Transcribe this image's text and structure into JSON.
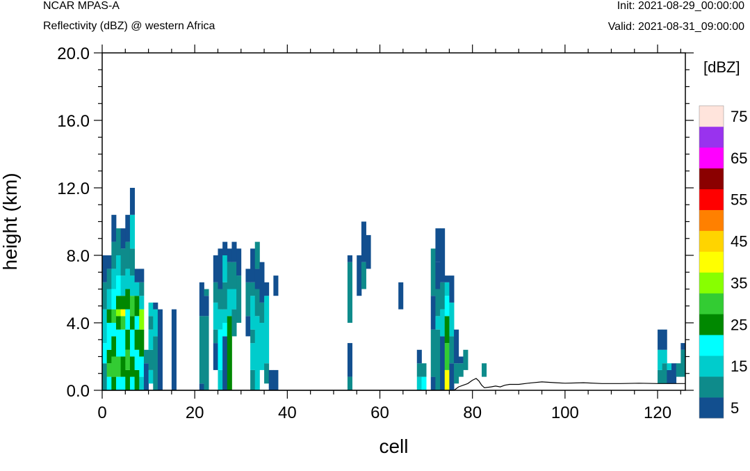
{
  "header": {
    "title_left": "NCAR MPAS-A",
    "subtitle_left": "Reflectivity (dBZ) @ western Africa",
    "init_label": "Init: 2021-08-29_00:00:00",
    "valid_label": "Valid: 2021-08-31_09:00:00"
  },
  "chart_data": {
    "type": "heatmap",
    "xlabel": "cell",
    "ylabel": "height (km)",
    "xlim": [
      0,
      126
    ],
    "ylim": [
      0,
      20
    ],
    "x_ticks": [
      "0",
      "20",
      "40",
      "60",
      "80",
      "100",
      "120"
    ],
    "y_ticks": [
      "0.0",
      "4.0",
      "8.0",
      "12.0",
      "16.0",
      "20.0"
    ],
    "cell_height_km": 0.4,
    "colorbar": {
      "unit": "[dBZ]",
      "levels": [
        5,
        10,
        15,
        20,
        25,
        30,
        35,
        40,
        45,
        50,
        55,
        60,
        65,
        70,
        75
      ],
      "labels": [
        "5",
        "15",
        "25",
        "35",
        "45",
        "55",
        "65",
        "75"
      ],
      "colors": [
        "#124f8f",
        "#0e8b8b",
        "#00cccc",
        "#00ffff",
        "#008800",
        "#33cc33",
        "#88ff00",
        "#ffff00",
        "#ffd400",
        "#ff8000",
        "#ff0000",
        "#8b0000",
        "#ff00ff",
        "#9933ee",
        "#ffe4dc"
      ]
    },
    "columns": [
      {
        "x": 0,
        "bins": [
          [
            0,
            1.6,
            2
          ],
          [
            1.6,
            2.8,
            4
          ],
          [
            2.8,
            4.8,
            3
          ],
          [
            4.8,
            6.4,
            2
          ],
          [
            6.4,
            8,
            1
          ]
        ]
      },
      {
        "x": 1,
        "bins": [
          [
            0,
            0.8,
            4
          ],
          [
            0.8,
            1.6,
            6
          ],
          [
            1.6,
            2.4,
            5
          ],
          [
            2.4,
            4,
            4
          ],
          [
            4,
            4.8,
            5
          ],
          [
            4.8,
            6,
            3
          ],
          [
            6,
            7.2,
            2
          ],
          [
            7.2,
            8,
            1
          ]
        ]
      },
      {
        "x": 2,
        "bins": [
          [
            0,
            0.8,
            5
          ],
          [
            0.8,
            2,
            6
          ],
          [
            2,
            3.2,
            5
          ],
          [
            3.2,
            4,
            4
          ],
          [
            4,
            4.8,
            6
          ],
          [
            4.8,
            6,
            4
          ],
          [
            6,
            7.2,
            3
          ],
          [
            7.2,
            8.8,
            2
          ],
          [
            8.8,
            10.4,
            1
          ]
        ]
      },
      {
        "x": 3,
        "bins": [
          [
            0,
            0.8,
            4
          ],
          [
            0.8,
            2,
            6
          ],
          [
            2,
            3.6,
            4
          ],
          [
            3.6,
            4.4,
            5
          ],
          [
            4.4,
            4.8,
            7
          ],
          [
            4.8,
            5.6,
            5
          ],
          [
            5.6,
            6.8,
            4
          ],
          [
            6.8,
            8,
            3
          ],
          [
            8,
            9.6,
            2
          ]
        ]
      },
      {
        "x": 4,
        "bins": [
          [
            0,
            0.8,
            4
          ],
          [
            0.8,
            2,
            5
          ],
          [
            2,
            3.6,
            4
          ],
          [
            3.6,
            4.4,
            6
          ],
          [
            4.4,
            4.8,
            8
          ],
          [
            4.8,
            5.6,
            5
          ],
          [
            5.6,
            6.8,
            3
          ],
          [
            6.8,
            8.4,
            2
          ],
          [
            8.4,
            9.6,
            1
          ]
        ]
      },
      {
        "x": 5,
        "bins": [
          [
            0,
            1.2,
            5
          ],
          [
            1.2,
            2.4,
            6
          ],
          [
            2.4,
            3.6,
            5
          ],
          [
            3.6,
            4.8,
            4
          ],
          [
            4.8,
            6,
            5
          ],
          [
            6,
            7.2,
            3
          ],
          [
            7.2,
            8.8,
            2
          ],
          [
            8.8,
            10.4,
            1
          ]
        ]
      },
      {
        "x": 6,
        "bins": [
          [
            0,
            0.8,
            4
          ],
          [
            0.8,
            2,
            5
          ],
          [
            2,
            3.6,
            4
          ],
          [
            3.6,
            4.4,
            5
          ],
          [
            4.4,
            5.6,
            6
          ],
          [
            5.6,
            6.8,
            3
          ],
          [
            6.8,
            8.4,
            2
          ],
          [
            8.4,
            10.4,
            3
          ],
          [
            10.4,
            12,
            1
          ]
        ]
      },
      {
        "x": 7,
        "bins": [
          [
            0,
            1.2,
            5
          ],
          [
            1.2,
            2.4,
            4
          ],
          [
            2.4,
            3.6,
            5
          ],
          [
            3.6,
            4.4,
            4
          ],
          [
            4.4,
            5.6,
            5
          ],
          [
            5.6,
            6.4,
            3
          ],
          [
            6.4,
            7.2,
            1
          ]
        ]
      },
      {
        "x": 8,
        "bins": [
          [
            0,
            0.8,
            3
          ],
          [
            0.8,
            2,
            4
          ],
          [
            2,
            3.6,
            5
          ],
          [
            3.6,
            4.8,
            7
          ],
          [
            4.8,
            5.6,
            3
          ],
          [
            5.6,
            6.4,
            2
          ],
          [
            6.4,
            7.2,
            1
          ]
        ]
      },
      {
        "x": 9,
        "bins": [
          [
            0,
            1.6,
            1
          ],
          [
            1.6,
            2.4,
            2
          ]
        ]
      },
      {
        "x": 10,
        "bins": [
          [
            0.4,
            1.2,
            3
          ],
          [
            1.2,
            2.4,
            2
          ],
          [
            2.4,
            3.6,
            3
          ],
          [
            3.6,
            4.4,
            2
          ],
          [
            4.4,
            5.2,
            3
          ]
        ]
      },
      {
        "x": 11,
        "bins": [
          [
            0,
            3.2,
            2
          ],
          [
            3.2,
            4.8,
            3
          ],
          [
            4.8,
            5.2,
            1
          ]
        ]
      },
      {
        "x": 12,
        "bins": [
          [
            0,
            4.8,
            1
          ]
        ]
      },
      {
        "x": 15,
        "bins": [
          [
            0,
            4.8,
            1
          ]
        ]
      },
      {
        "x": 21,
        "bins": [
          [
            0,
            0.4,
            1
          ],
          [
            0.4,
            4.4,
            2
          ],
          [
            4.4,
            6.4,
            1
          ]
        ]
      },
      {
        "x": 22,
        "bins": [
          [
            0,
            4.4,
            2
          ],
          [
            4.4,
            5.6,
            1
          ],
          [
            5.6,
            6,
            2
          ]
        ]
      },
      {
        "x": 24,
        "bins": [
          [
            1.2,
            2.8,
            1
          ],
          [
            2.8,
            3.6,
            2
          ],
          [
            3.6,
            5.2,
            3
          ],
          [
            5.2,
            6.4,
            2
          ],
          [
            6.4,
            8,
            1
          ]
        ]
      },
      {
        "x": 25,
        "bins": [
          [
            0,
            1.2,
            3
          ],
          [
            1.2,
            3.6,
            4
          ],
          [
            3.6,
            4.8,
            3
          ],
          [
            4.8,
            6,
            2
          ],
          [
            6,
            8,
            1
          ],
          [
            8,
            8.4,
            1
          ]
        ]
      },
      {
        "x": 26,
        "bins": [
          [
            0,
            3.2,
            1
          ],
          [
            3.2,
            4,
            4
          ],
          [
            4,
            4.8,
            3
          ],
          [
            4.8,
            6.4,
            2
          ],
          [
            6.4,
            8,
            3
          ],
          [
            8,
            8.8,
            1
          ]
        ]
      },
      {
        "x": 27,
        "bins": [
          [
            0,
            4.4,
            5
          ],
          [
            4.4,
            6,
            3
          ],
          [
            6,
            7.6,
            2
          ],
          [
            7.6,
            8.4,
            1
          ]
        ]
      },
      {
        "x": 28,
        "bins": [
          [
            3.2,
            4.8,
            2
          ],
          [
            4.8,
            6,
            3
          ],
          [
            6,
            7.6,
            2
          ],
          [
            7.6,
            8.8,
            1
          ]
        ]
      },
      {
        "x": 29,
        "bins": [
          [
            4,
            6.8,
            2
          ],
          [
            6.8,
            8.4,
            1
          ]
        ]
      },
      {
        "x": 31,
        "bins": [
          [
            3.2,
            4.4,
            1
          ],
          [
            4.4,
            6.4,
            2
          ],
          [
            6.4,
            7.2,
            1
          ]
        ]
      },
      {
        "x": 32,
        "bins": [
          [
            0,
            1.2,
            2
          ],
          [
            1.2,
            2.8,
            3
          ],
          [
            2.8,
            3.6,
            2
          ],
          [
            3.6,
            5.6,
            3
          ],
          [
            5.6,
            6.4,
            2
          ],
          [
            6.4,
            8.4,
            1
          ]
        ]
      },
      {
        "x": 33,
        "bins": [
          [
            0,
            4.4,
            3
          ],
          [
            4.4,
            6,
            2
          ],
          [
            6,
            7.2,
            1
          ],
          [
            7.2,
            8.8,
            2
          ]
        ]
      },
      {
        "x": 34,
        "bins": [
          [
            1.2,
            4,
            3
          ],
          [
            4,
            5.2,
            2
          ],
          [
            5.2,
            7.6,
            1
          ]
        ]
      },
      {
        "x": 35,
        "bins": [
          [
            0.4,
            1.6,
            2
          ],
          [
            1.6,
            5.6,
            3
          ],
          [
            5.6,
            6.4,
            1
          ]
        ]
      },
      {
        "x": 36,
        "bins": [
          [
            0,
            1.2,
            1
          ]
        ]
      },
      {
        "x": 37,
        "bins": [
          [
            0,
            1.2,
            1
          ],
          [
            5.6,
            6.8,
            1
          ]
        ]
      },
      {
        "x": 53,
        "bins": [
          [
            0,
            0.8,
            2
          ],
          [
            0.8,
            2.8,
            1
          ],
          [
            4,
            7.6,
            2
          ],
          [
            7.6,
            8,
            1
          ]
        ]
      },
      {
        "x": 55,
        "bins": [
          [
            5.6,
            8,
            1
          ]
        ]
      },
      {
        "x": 56,
        "bins": [
          [
            6,
            7.6,
            2
          ],
          [
            7.6,
            10,
            1
          ]
        ]
      },
      {
        "x": 57,
        "bins": [
          [
            7.2,
            9.2,
            1
          ]
        ]
      },
      {
        "x": 64,
        "bins": [
          [
            4.8,
            6.4,
            1
          ]
        ]
      },
      {
        "x": 68,
        "bins": [
          [
            0,
            0.8,
            3
          ],
          [
            0.8,
            1.6,
            2
          ],
          [
            1.6,
            2.4,
            1
          ]
        ]
      },
      {
        "x": 69,
        "bins": [
          [
            0,
            0.8,
            4
          ],
          [
            0.8,
            1.6,
            2
          ]
        ]
      },
      {
        "x": 71,
        "bins": [
          [
            0,
            0.8,
            1
          ],
          [
            0.8,
            3.6,
            2
          ],
          [
            3.6,
            5.6,
            1
          ],
          [
            5.6,
            8.4,
            2
          ]
        ]
      },
      {
        "x": 72,
        "bins": [
          [
            0,
            3.6,
            2
          ],
          [
            3.6,
            4.4,
            3
          ],
          [
            4.4,
            6,
            2
          ],
          [
            6,
            7.6,
            1
          ],
          [
            7.6,
            9.6,
            1
          ]
        ]
      },
      {
        "x": 73,
        "bins": [
          [
            0,
            3.2,
            1
          ],
          [
            3.2,
            4.8,
            3
          ],
          [
            4.8,
            6.4,
            2
          ],
          [
            6.4,
            9.6,
            1
          ]
        ]
      },
      {
        "x": 74,
        "bins": [
          [
            0,
            1.2,
            8
          ],
          [
            1.2,
            2.8,
            6
          ],
          [
            2.8,
            4.4,
            5
          ],
          [
            4.4,
            5.6,
            4
          ],
          [
            5.6,
            6.4,
            3
          ],
          [
            6.4,
            6.8,
            1
          ]
        ]
      },
      {
        "x": 75,
        "bins": [
          [
            0,
            1.6,
            1
          ],
          [
            1.6,
            3.2,
            2
          ],
          [
            3.2,
            5.2,
            3
          ],
          [
            5.2,
            6.8,
            1
          ]
        ]
      },
      {
        "x": 76,
        "bins": [
          [
            0.4,
            1.6,
            2
          ],
          [
            1.6,
            3.6,
            1
          ]
        ]
      },
      {
        "x": 77,
        "bins": [
          [
            0.8,
            1.6,
            2
          ],
          [
            1.6,
            2,
            1
          ]
        ]
      },
      {
        "x": 78,
        "bins": [
          [
            1.2,
            2.4,
            2
          ]
        ]
      },
      {
        "x": 82,
        "bins": [
          [
            0.8,
            1.6,
            2
          ]
        ]
      },
      {
        "x": 120,
        "bins": [
          [
            0.4,
            1.2,
            2
          ],
          [
            1.2,
            2.4,
            3
          ],
          [
            2.4,
            3.6,
            1
          ]
        ]
      },
      {
        "x": 121,
        "bins": [
          [
            0.4,
            1.6,
            2
          ],
          [
            1.6,
            2.4,
            3
          ],
          [
            2.4,
            3.6,
            1
          ]
        ]
      },
      {
        "x": 122,
        "bins": [
          [
            0.4,
            1.2,
            1
          ],
          [
            1.2,
            1.6,
            3
          ]
        ]
      },
      {
        "x": 123,
        "bins": [
          [
            0.4,
            1.6,
            1
          ]
        ]
      },
      {
        "x": 124,
        "bins": [
          [
            0.8,
            1.6,
            2
          ]
        ]
      },
      {
        "x": 125,
        "bins": [
          [
            0.8,
            2.4,
            2
          ],
          [
            2.4,
            2.8,
            1
          ]
        ]
      }
    ],
    "terrain": [
      [
        0,
        0
      ],
      [
        76,
        0
      ],
      [
        77,
        0.2
      ],
      [
        78,
        0.3
      ],
      [
        79,
        0.4
      ],
      [
        80,
        0.6
      ],
      [
        80.8,
        0.7
      ],
      [
        81.4,
        0.55
      ],
      [
        82,
        0.3
      ],
      [
        82.6,
        0.15
      ],
      [
        84,
        0.2
      ],
      [
        85,
        0.25
      ],
      [
        86,
        0.2
      ],
      [
        87,
        0.3
      ],
      [
        88,
        0.35
      ],
      [
        90,
        0.35
      ],
      [
        92,
        0.42
      ],
      [
        95,
        0.5
      ],
      [
        98,
        0.45
      ],
      [
        100,
        0.42
      ],
      [
        104,
        0.45
      ],
      [
        108,
        0.4
      ],
      [
        112,
        0.4
      ],
      [
        116,
        0.42
      ],
      [
        120,
        0.4
      ],
      [
        126,
        0.4
      ]
    ]
  }
}
